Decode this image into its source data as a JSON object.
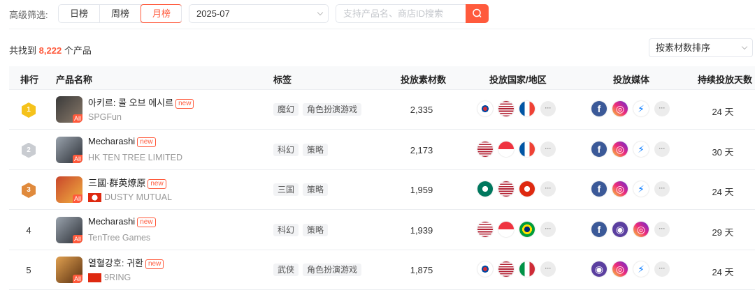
{
  "filter": {
    "label": "高级筛选:",
    "tabs": [
      "日榜",
      "周榜",
      "月榜"
    ],
    "active_tab": "月榜",
    "date": "2025-07",
    "search_placeholder": "支持产品名、商店ID搜索",
    "search_icon": "search-icon"
  },
  "summary": {
    "prefix": "共找到",
    "count": "8,222",
    "suffix": "个产品"
  },
  "sort": {
    "selected": "按素材数排序"
  },
  "table": {
    "headers": {
      "rank": "排行",
      "name": "产品名称",
      "tags": "标签",
      "creatives": "投放素材数",
      "countries": "投放国家/地区",
      "media": "投放媒体",
      "days": "持续投放天数"
    },
    "rows": [
      {
        "rank": "1",
        "medal": "gold",
        "name": "아키르: 콜 오브 에시르",
        "badge": "new",
        "publisher": "SPGFun",
        "publisher_flag": "",
        "platform": "All",
        "tags": [
          "魔幻",
          "角色扮演游戏"
        ],
        "creatives": "2,335",
        "countries": [
          "kr",
          "us",
          "fr"
        ],
        "media": [
          "facebook",
          "instagram",
          "messenger"
        ],
        "days": "24 天"
      },
      {
        "rank": "2",
        "medal": "silver",
        "name": "Mecharashi",
        "badge": "new",
        "publisher": "HK TEN TREE LIMITED",
        "publisher_flag": "",
        "platform": "All",
        "tags": [
          "科幻",
          "策略"
        ],
        "creatives": "2,173",
        "countries": [
          "us",
          "sg",
          "fr"
        ],
        "media": [
          "facebook",
          "instagram",
          "messenger"
        ],
        "days": "30 天"
      },
      {
        "rank": "3",
        "medal": "bronze",
        "name": "三國·群英燎原",
        "badge": "new",
        "publisher": "DUSTY MUTUAL",
        "publisher_flag": "hk",
        "platform": "All",
        "tags": [
          "三国",
          "策略"
        ],
        "creatives": "1,959",
        "countries": [
          "mo",
          "us",
          "hk"
        ],
        "media": [
          "facebook",
          "instagram",
          "messenger"
        ],
        "days": "24 天"
      },
      {
        "rank": "4",
        "medal": "",
        "name": "Mecharashi",
        "badge": "new",
        "publisher": "TenTree Games",
        "publisher_flag": "",
        "platform": "All",
        "tags": [
          "科幻",
          "策略"
        ],
        "creatives": "1,939",
        "countries": [
          "us",
          "sg",
          "br"
        ],
        "media": [
          "facebook",
          "audience-network",
          "instagram"
        ],
        "days": "29 天"
      },
      {
        "rank": "5",
        "medal": "",
        "name": "열혈강호: 귀환",
        "badge": "new",
        "publisher": "9RING",
        "publisher_flag": "cn",
        "platform": "All",
        "tags": [
          "武侠",
          "角色扮演游戏"
        ],
        "creatives": "1,875",
        "countries": [
          "kr",
          "us",
          "it"
        ],
        "media": [
          "audience-network",
          "instagram",
          "messenger"
        ],
        "days": "24 天"
      }
    ]
  },
  "colors": {
    "accent": "#ff5a3c",
    "gold": "#f5c21b",
    "silver": "#c9ccd1",
    "bronze": "#e08a3c"
  }
}
